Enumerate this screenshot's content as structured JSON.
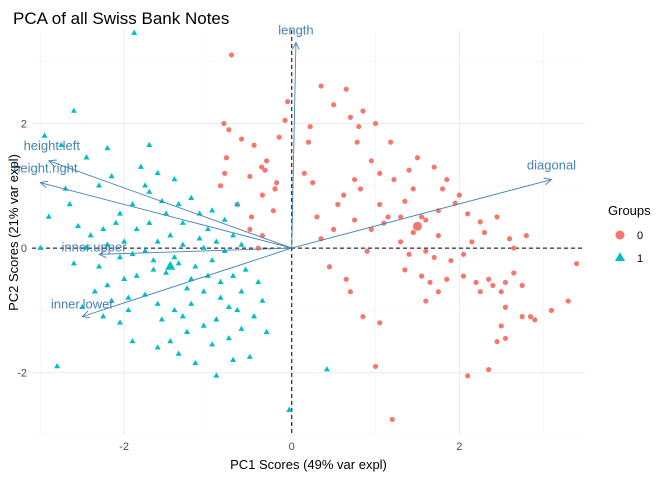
{
  "chart_data": {
    "type": "scatter",
    "title": "PCA of all Swiss Bank Notes",
    "xlabel": "PC1 Scores (49% var expl)",
    "ylabel": "PC2 Scores (21% var expl)",
    "xlim": [
      -3.1,
      3.5
    ],
    "ylim": [
      -3.0,
      3.5
    ],
    "x_ticks": [
      -2,
      0,
      2
    ],
    "y_ticks": [
      -2,
      0,
      2
    ],
    "x_tick_labels": [
      "-2",
      "0",
      "2"
    ],
    "y_tick_labels": [
      "-2",
      "0",
      "2"
    ],
    "grid": true,
    "reference_lines": {
      "x": 0,
      "y": 0,
      "style": "dashed"
    },
    "legend": {
      "title": "Groups",
      "position": "right",
      "entries": [
        {
          "label": "0",
          "color": "#F8766D",
          "shape": "circle"
        },
        {
          "label": "1",
          "color": "#00BFC4",
          "shape": "triangle"
        }
      ]
    },
    "loadings": [
      {
        "label": "length",
        "x": 0.05,
        "y": 3.3
      },
      {
        "label": "diagonal",
        "x": 3.1,
        "y": 1.1
      },
      {
        "label": "height.left",
        "x": -2.9,
        "y": 1.4
      },
      {
        "label": "height.right",
        "x": -3.0,
        "y": 1.05
      },
      {
        "label": "inner.upper",
        "x": -2.3,
        "y": -0.1
      },
      {
        "label": "inner.lower",
        "x": -2.5,
        "y": -1.1
      }
    ],
    "loading_color": "#4682B4",
    "series": [
      {
        "name": "0",
        "color": "#F8766D",
        "shape": "circle",
        "centroid": [
          1.5,
          0.35
        ],
        "points": [
          [
            -0.75,
            1.9
          ],
          [
            -0.81,
            2.0
          ],
          [
            -0.78,
            1.45
          ],
          [
            -0.6,
            1.75
          ],
          [
            -0.45,
            1.65
          ],
          [
            -0.36,
            1.3
          ],
          [
            -0.32,
            1.25
          ],
          [
            -0.3,
            1.4
          ],
          [
            -0.5,
            1.15
          ],
          [
            -0.2,
            0.95
          ],
          [
            -0.35,
            0.85
          ],
          [
            -0.65,
            0.7
          ],
          [
            -0.48,
            0.5
          ],
          [
            -0.22,
            0.6
          ],
          [
            -0.8,
            1.2
          ],
          [
            -0.18,
            1.05
          ],
          [
            -0.15,
            1.78
          ],
          [
            -0.05,
            2.35
          ],
          [
            -0.08,
            2.05
          ],
          [
            0.15,
            1.2
          ],
          [
            0.25,
            1.05
          ],
          [
            0.2,
            1.7
          ],
          [
            0.22,
            1.95
          ],
          [
            0.35,
            2.6
          ],
          [
            0.5,
            2.3
          ],
          [
            0.65,
            2.55
          ],
          [
            0.7,
            2.1
          ],
          [
            0.78,
            1.7
          ],
          [
            0.8,
            1.95
          ],
          [
            0.85,
            2.2
          ],
          [
            1.0,
            2.0
          ],
          [
            0.95,
            1.4
          ],
          [
            0.75,
            1.1
          ],
          [
            0.82,
            0.95
          ],
          [
            0.62,
            0.85
          ],
          [
            1.18,
            1.7
          ],
          [
            1.05,
            1.2
          ],
          [
            1.22,
            1.1
          ],
          [
            1.4,
            1.25
          ],
          [
            1.45,
            0.95
          ],
          [
            1.35,
            0.75
          ],
          [
            1.55,
            0.5
          ],
          [
            1.6,
            0.45
          ],
          [
            1.3,
            0.5
          ],
          [
            1.1,
            0.4
          ],
          [
            0.95,
            0.3
          ],
          [
            1.5,
            1.45
          ],
          [
            1.7,
            1.3
          ],
          [
            1.85,
            1.1
          ],
          [
            1.8,
            0.95
          ],
          [
            2.0,
            0.85
          ],
          [
            1.95,
            0.72
          ],
          [
            1.75,
            0.6
          ],
          [
            2.1,
            0.55
          ],
          [
            2.25,
            0.42
          ],
          [
            2.45,
            0.5
          ],
          [
            2.3,
            0.25
          ],
          [
            2.6,
            0.15
          ],
          [
            2.65,
            0.0
          ],
          [
            2.8,
            0.2
          ],
          [
            2.15,
            0.1
          ],
          [
            2.05,
            -0.1
          ],
          [
            1.9,
            -0.2
          ],
          [
            1.7,
            -0.15
          ],
          [
            1.6,
            -0.05
          ],
          [
            1.4,
            -0.1
          ],
          [
            1.3,
            0.1
          ],
          [
            1.45,
            0.25
          ],
          [
            1.75,
            0.2
          ],
          [
            1.35,
            -0.35
          ],
          [
            1.55,
            -0.45
          ],
          [
            1.65,
            -0.55
          ],
          [
            1.75,
            -0.7
          ],
          [
            1.6,
            -0.85
          ],
          [
            1.85,
            -0.5
          ],
          [
            2.05,
            -0.45
          ],
          [
            2.2,
            -0.55
          ],
          [
            2.35,
            -0.5
          ],
          [
            2.25,
            -0.7
          ],
          [
            2.4,
            -0.6
          ],
          [
            2.5,
            -0.7
          ],
          [
            2.55,
            -0.55
          ],
          [
            2.65,
            -0.4
          ],
          [
            2.75,
            -0.6
          ],
          [
            2.55,
            -0.95
          ],
          [
            2.75,
            -1.1
          ],
          [
            2.85,
            -1.1
          ],
          [
            2.9,
            -1.15
          ],
          [
            3.1,
            -1.0
          ],
          [
            3.3,
            -0.85
          ],
          [
            3.4,
            -0.25
          ],
          [
            2.5,
            -1.25
          ],
          [
            2.55,
            -1.45
          ],
          [
            2.45,
            -1.5
          ],
          [
            2.35,
            -1.95
          ],
          [
            1.05,
            -1.2
          ],
          [
            2.1,
            -2.05
          ],
          [
            1.0,
            -1.9
          ],
          [
            0.85,
            -1.1
          ],
          [
            0.7,
            -0.7
          ],
          [
            0.45,
            -0.3
          ],
          [
            0.65,
            -0.5
          ],
          [
            0.5,
            0.3
          ],
          [
            0.3,
            0.5
          ],
          [
            0.35,
            0.15
          ],
          [
            0.55,
            0.7
          ],
          [
            0.75,
            0.45
          ],
          [
            0.9,
            -0.05
          ],
          [
            1.05,
            0.7
          ],
          [
            1.15,
            0.5
          ],
          [
            1.2,
            -2.75
          ],
          [
            -0.85,
            1.0
          ],
          [
            -0.72,
            3.1
          ],
          [
            -0.5,
            0.3
          ],
          [
            -0.4,
            0.0
          ],
          [
            -0.35,
            0.2
          ]
        ]
      },
      {
        "name": "1",
        "color": "#00BFC4",
        "shape": "triangle",
        "centroid": [
          -1.45,
          -0.3
        ],
        "points": [
          [
            -1.88,
            3.45
          ],
          [
            -2.6,
            2.2
          ],
          [
            -2.95,
            1.8
          ],
          [
            -2.75,
            1.65
          ],
          [
            -2.45,
            1.45
          ],
          [
            -2.2,
            1.6
          ],
          [
            -2.15,
            1.15
          ],
          [
            -1.7,
            1.65
          ],
          [
            -1.8,
            1.3
          ],
          [
            -1.6,
            1.2
          ],
          [
            -1.4,
            1.1
          ],
          [
            -1.2,
            0.8
          ],
          [
            -1.35,
            0.7
          ],
          [
            -1.55,
            0.75
          ],
          [
            -1.7,
            0.9
          ],
          [
            -1.9,
            0.7
          ],
          [
            -2.05,
            0.55
          ],
          [
            -2.1,
            0.4
          ],
          [
            -2.25,
            0.3
          ],
          [
            -2.4,
            0.2
          ],
          [
            -2.2,
            0.05
          ],
          [
            -2.0,
            0.1
          ],
          [
            -1.9,
            -0.1
          ],
          [
            -1.75,
            -0.05
          ],
          [
            -1.6,
            0.1
          ],
          [
            -1.45,
            0.2
          ],
          [
            -1.3,
            0.05
          ],
          [
            -1.1,
            0.15
          ],
          [
            -1.0,
            0.3
          ],
          [
            -0.9,
            0.1
          ],
          [
            -0.8,
            -0.05
          ],
          [
            -0.7,
            0.2
          ],
          [
            -0.6,
            0.05
          ],
          [
            -0.95,
            -0.2
          ],
          [
            -1.15,
            -0.3
          ],
          [
            -1.35,
            -0.25
          ],
          [
            -1.5,
            -0.4
          ],
          [
            -1.65,
            -0.35
          ],
          [
            -1.85,
            -0.45
          ],
          [
            -2.0,
            -0.5
          ],
          [
            -2.2,
            -0.6
          ],
          [
            -2.35,
            -0.7
          ],
          [
            -2.15,
            -0.85
          ],
          [
            -1.95,
            -0.8
          ],
          [
            -1.75,
            -0.75
          ],
          [
            -1.6,
            -0.9
          ],
          [
            -1.4,
            -1.0
          ],
          [
            -1.2,
            -0.9
          ],
          [
            -1.05,
            -0.7
          ],
          [
            -0.85,
            -0.55
          ],
          [
            -0.7,
            -0.45
          ],
          [
            -0.55,
            -0.35
          ],
          [
            -0.6,
            -0.7
          ],
          [
            -0.75,
            -0.95
          ],
          [
            -0.9,
            -1.15
          ],
          [
            -1.05,
            -1.25
          ],
          [
            -1.25,
            -1.35
          ],
          [
            -1.45,
            -1.5
          ],
          [
            -1.6,
            -1.6
          ],
          [
            -1.35,
            -1.7
          ],
          [
            -1.15,
            -1.85
          ],
          [
            -0.95,
            -1.55
          ],
          [
            -0.75,
            -1.45
          ],
          [
            -0.6,
            -1.3
          ],
          [
            -0.45,
            -1.1
          ],
          [
            -0.35,
            -0.85
          ],
          [
            -0.3,
            -1.35
          ],
          [
            -0.5,
            -1.75
          ],
          [
            -0.7,
            -1.8
          ],
          [
            -0.9,
            -2.05
          ],
          [
            -1.9,
            -1.5
          ],
          [
            -2.05,
            -1.2
          ],
          [
            -2.25,
            -1.1
          ],
          [
            -2.5,
            -0.95
          ],
          [
            -2.8,
            -1.9
          ],
          [
            -3.0,
            0.0
          ],
          [
            -2.9,
            0.5
          ],
          [
            -2.65,
            0.7
          ],
          [
            -2.55,
            0.35
          ],
          [
            -2.45,
            0.0
          ],
          [
            -2.6,
            -0.25
          ],
          [
            -2.3,
            -0.3
          ],
          [
            -2.05,
            -0.15
          ],
          [
            -1.85,
            0.3
          ],
          [
            -1.7,
            0.4
          ],
          [
            -1.5,
            0.55
          ],
          [
            -1.3,
            0.4
          ],
          [
            -1.1,
            0.55
          ],
          [
            -0.95,
            0.6
          ],
          [
            -0.8,
            0.45
          ],
          [
            -0.65,
            0.7
          ],
          [
            -1.65,
            -0.2
          ],
          [
            -1.4,
            -0.15
          ],
          [
            -1.2,
            -0.5
          ],
          [
            -1.0,
            -0.45
          ],
          [
            -1.55,
            -1.15
          ],
          [
            -1.3,
            -1.1
          ],
          [
            -0.85,
            -0.8
          ],
          [
            -0.65,
            -1.0
          ],
          [
            0.42,
            -1.95
          ],
          [
            -0.03,
            -2.6
          ],
          [
            -1.75,
            1.0
          ],
          [
            -2.3,
            1.0
          ],
          [
            -2.7,
            0.95
          ],
          [
            -1.95,
            -1.0
          ],
          [
            -1.25,
            -0.65
          ],
          [
            -0.4,
            -0.55
          ],
          [
            -1.05,
            0.0
          ]
        ]
      }
    ]
  }
}
